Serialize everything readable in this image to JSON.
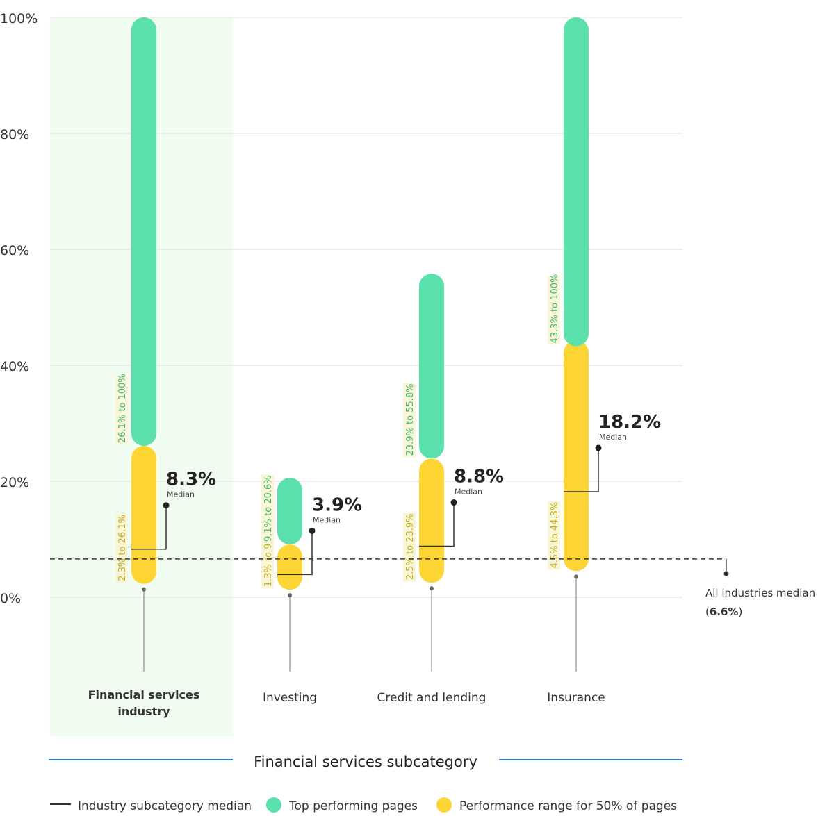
{
  "chart_data": {
    "type": "range-bar",
    "ylim": [
      0,
      100
    ],
    "yticks": [
      "0%",
      "20%",
      "40%",
      "60%",
      "80%",
      "100%"
    ],
    "ytick_values": [
      0,
      20,
      40,
      60,
      80,
      100
    ],
    "grid": true,
    "categories": [
      "Financial services industry",
      "Investing",
      "Credit and lending",
      "Insurance"
    ],
    "category_lines": [
      [
        "Financial services",
        "industry"
      ],
      [
        "Investing"
      ],
      [
        "Credit and lending"
      ],
      [
        "Insurance"
      ]
    ],
    "highlighted_category": "Financial services industry",
    "series": [
      {
        "name": "Performance range for 50% of pages",
        "color": "#fdd535",
        "ranges": [
          [
            2.3,
            26.1
          ],
          [
            1.3,
            9.1
          ],
          [
            2.5,
            23.9
          ],
          [
            4.5,
            44.3
          ]
        ],
        "labels": [
          "2.3% to 26.1%",
          "1.3% to 9.1%",
          "2.5% to 23.9%",
          "4.5% to 44.3%"
        ]
      },
      {
        "name": "Top performing pages",
        "color": "#5ce0ac",
        "ranges": [
          [
            26.1,
            100
          ],
          [
            9.1,
            20.6
          ],
          [
            23.9,
            55.8
          ],
          [
            43.3,
            100
          ]
        ],
        "labels": [
          "26.1% to 100%",
          "9.1% to 20.6%",
          "23.9% to 55.8%",
          "43.3% to 100%"
        ]
      }
    ],
    "medians": [
      8.3,
      3.9,
      8.8,
      18.2
    ],
    "median_labels": [
      "8.3%",
      "3.9%",
      "8.8%",
      "18.2%"
    ],
    "median_caption": "Median",
    "reference_line": {
      "value": 6.6,
      "label": "All industries median",
      "value_label": "6.6%"
    },
    "xlabel": "Financial services subcategory",
    "legend": [
      {
        "label": "Industry subcategory median",
        "type": "line",
        "color": "#333333"
      },
      {
        "label": "Top performing pages",
        "type": "dot",
        "color": "#5ce0ac"
      },
      {
        "label": "Performance range for 50% of pages",
        "type": "dot",
        "color": "#fdd535"
      }
    ],
    "legend_placement": "bottom",
    "colors": {
      "axis_blue": "#2d7de0",
      "highlight": "#f1fdf1",
      "grid": "#dddddd"
    }
  }
}
